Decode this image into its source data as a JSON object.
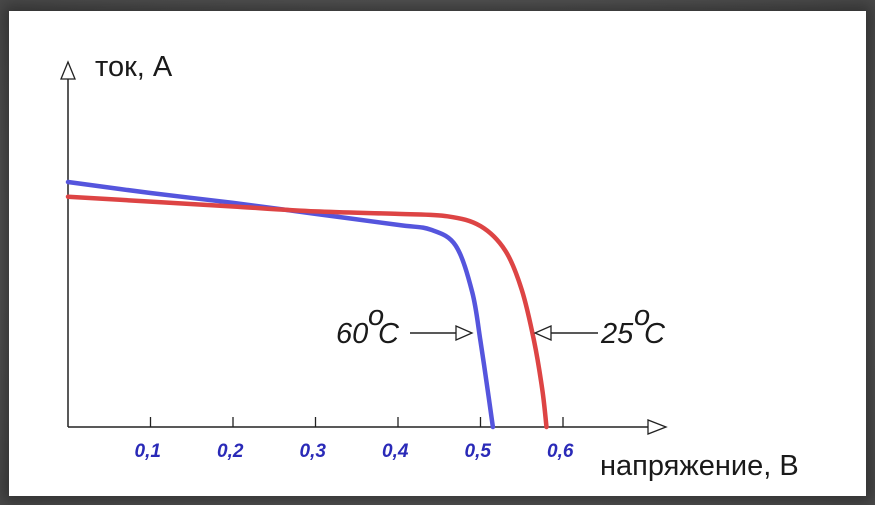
{
  "chart_data": {
    "type": "line",
    "ylabel": "ток, А",
    "xlabel": "напряжение, В",
    "x_ticks": [
      "0,1",
      "0,2",
      "0,3",
      "0,4",
      "0,5",
      "0,6"
    ],
    "x_tick_values": [
      0.1,
      0.2,
      0.3,
      0.4,
      0.5,
      0.6
    ],
    "xlim": [
      0,
      0.72
    ],
    "ylim": [
      0,
      1.3
    ],
    "grid": false,
    "series": [
      {
        "name": "60°C",
        "color": "#5555dd",
        "points": [
          [
            0,
            1.0
          ],
          [
            0.1,
            0.955
          ],
          [
            0.2,
            0.915
          ],
          [
            0.3,
            0.87
          ],
          [
            0.4,
            0.825
          ],
          [
            0.44,
            0.805
          ],
          [
            0.47,
            0.74
          ],
          [
            0.49,
            0.55
          ],
          [
            0.5,
            0.35
          ],
          [
            0.51,
            0.12
          ],
          [
            0.515,
            0
          ]
        ]
      },
      {
        "name": "25°C",
        "color": "#dd4444",
        "points": [
          [
            0,
            0.94
          ],
          [
            0.1,
            0.92
          ],
          [
            0.2,
            0.9
          ],
          [
            0.3,
            0.88
          ],
          [
            0.4,
            0.87
          ],
          [
            0.46,
            0.86
          ],
          [
            0.5,
            0.82
          ],
          [
            0.53,
            0.72
          ],
          [
            0.55,
            0.56
          ],
          [
            0.565,
            0.35
          ],
          [
            0.575,
            0.15
          ],
          [
            0.58,
            0
          ]
        ]
      }
    ],
    "annotations": [
      {
        "text": "60",
        "degree": "o",
        "unit": "C",
        "series": "60°C"
      },
      {
        "text": "25",
        "degree": "o",
        "unit": "C",
        "series": "25°C"
      }
    ]
  }
}
